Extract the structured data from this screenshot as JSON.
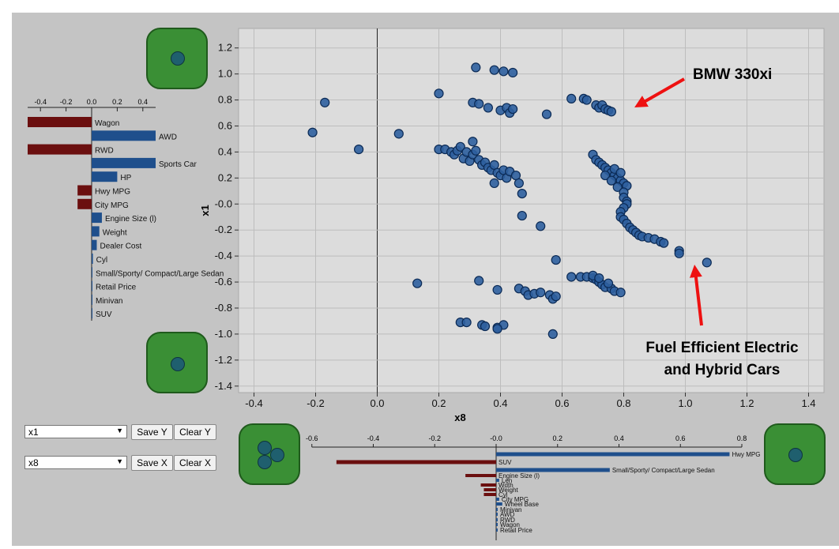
{
  "scatter": {
    "xlabel": "x8",
    "ylabel": "x1",
    "xlim": [
      -0.45,
      1.45
    ],
    "ylim": [
      -1.45,
      1.35
    ],
    "xticks": [
      -0.4,
      -0.2,
      0.0,
      0.2,
      0.4,
      0.6,
      0.8,
      1.0,
      1.2,
      1.4
    ],
    "yticks": [
      1.2,
      1.0,
      0.8,
      0.6,
      0.4,
      0.2,
      0.0,
      -0.2,
      -0.4,
      -0.6,
      -0.8,
      -1.0,
      -1.2,
      -1.4
    ],
    "xtick_labels": [
      "-0.4",
      "-0.2",
      "0.0",
      "0.2",
      "0.4",
      "0.6",
      "0.8",
      "1.0",
      "1.2",
      "1.4"
    ],
    "ytick_labels": [
      "1.2",
      "1.0",
      "0.8",
      "0.6",
      "0.4",
      "0.2",
      "-0.0",
      "-0.2",
      "-0.4",
      "-0.6",
      "-0.8",
      "-1.0",
      "-1.2",
      "-1.4"
    ],
    "point_color": "#2e5f9e",
    "grid": true
  },
  "annotations": {
    "bmw": "BMW 330xi",
    "fuel_line1": "Fuel Efficient Electric",
    "fuel_line2": "and Hybrid Cars",
    "arrow_color": "#ee1111"
  },
  "chart_data": [
    {
      "type": "scatter",
      "points": [
        [
          -0.21,
          0.55
        ],
        [
          -0.17,
          0.78
        ],
        [
          -0.06,
          0.42
        ],
        [
          0.07,
          0.54
        ],
        [
          0.13,
          -0.61
        ],
        [
          0.2,
          0.85
        ],
        [
          0.2,
          0.42
        ],
        [
          0.22,
          0.42
        ],
        [
          0.24,
          0.4
        ],
        [
          0.25,
          0.38
        ],
        [
          0.26,
          0.41
        ],
        [
          0.27,
          0.44
        ],
        [
          0.28,
          0.35
        ],
        [
          0.29,
          0.4
        ],
        [
          0.3,
          0.33
        ],
        [
          0.31,
          0.38
        ],
        [
          0.32,
          0.41
        ],
        [
          0.33,
          0.34
        ],
        [
          0.34,
          0.3
        ],
        [
          0.35,
          0.32
        ],
        [
          0.36,
          0.28
        ],
        [
          0.37,
          0.26
        ],
        [
          0.38,
          0.3
        ],
        [
          0.39,
          0.24
        ],
        [
          0.4,
          0.22
        ],
        [
          0.41,
          0.26
        ],
        [
          0.42,
          0.2
        ],
        [
          0.43,
          0.25
        ],
        [
          0.45,
          0.22
        ],
        [
          0.46,
          0.16
        ],
        [
          0.47,
          0.08
        ],
        [
          0.38,
          0.16
        ],
        [
          0.47,
          -0.09
        ],
        [
          0.53,
          -0.17
        ],
        [
          0.31,
          0.48
        ],
        [
          0.31,
          0.78
        ],
        [
          0.33,
          0.77
        ],
        [
          0.36,
          0.74
        ],
        [
          0.4,
          0.72
        ],
        [
          0.42,
          0.74
        ],
        [
          0.43,
          0.7
        ],
        [
          0.44,
          0.73
        ],
        [
          0.55,
          0.69
        ],
        [
          0.32,
          1.05
        ],
        [
          0.38,
          1.03
        ],
        [
          0.41,
          1.02
        ],
        [
          0.44,
          1.01
        ],
        [
          0.63,
          0.81
        ],
        [
          0.67,
          0.81
        ],
        [
          0.68,
          0.8
        ],
        [
          0.71,
          0.76
        ],
        [
          0.72,
          0.74
        ],
        [
          0.73,
          0.76
        ],
        [
          0.74,
          0.73
        ],
        [
          0.75,
          0.72
        ],
        [
          0.76,
          0.71
        ],
        [
          0.7,
          0.38
        ],
        [
          0.71,
          0.34
        ],
        [
          0.72,
          0.32
        ],
        [
          0.73,
          0.3
        ],
        [
          0.74,
          0.28
        ],
        [
          0.75,
          0.26
        ],
        [
          0.76,
          0.24
        ],
        [
          0.77,
          0.22
        ],
        [
          0.78,
          0.2
        ],
        [
          0.79,
          0.18
        ],
        [
          0.8,
          0.16
        ],
        [
          0.81,
          0.14
        ],
        [
          0.77,
          0.27
        ],
        [
          0.79,
          0.24
        ],
        [
          0.74,
          0.22
        ],
        [
          0.76,
          0.18
        ],
        [
          0.78,
          0.13
        ],
        [
          0.8,
          0.09
        ],
        [
          0.8,
          0.05
        ],
        [
          0.81,
          0.02
        ],
        [
          0.81,
          0.0
        ],
        [
          0.8,
          -0.03
        ],
        [
          0.79,
          -0.06
        ],
        [
          0.79,
          -0.1
        ],
        [
          0.8,
          -0.12
        ],
        [
          0.81,
          -0.15
        ],
        [
          0.82,
          -0.18
        ],
        [
          0.83,
          -0.2
        ],
        [
          0.84,
          -0.22
        ],
        [
          0.85,
          -0.24
        ],
        [
          0.86,
          -0.25
        ],
        [
          0.88,
          -0.26
        ],
        [
          0.9,
          -0.27
        ],
        [
          0.92,
          -0.29
        ],
        [
          0.93,
          -0.3
        ],
        [
          0.98,
          -0.36
        ],
        [
          0.98,
          -0.38
        ],
        [
          1.07,
          -0.45
        ],
        [
          0.58,
          -0.43
        ],
        [
          0.33,
          -0.59
        ],
        [
          0.39,
          -0.66
        ],
        [
          0.46,
          -0.65
        ],
        [
          0.48,
          -0.67
        ],
        [
          0.49,
          -0.7
        ],
        [
          0.51,
          -0.69
        ],
        [
          0.53,
          -0.68
        ],
        [
          0.56,
          -0.7
        ],
        [
          0.57,
          -0.73
        ],
        [
          0.58,
          -0.71
        ],
        [
          0.63,
          -0.56
        ],
        [
          0.66,
          -0.56
        ],
        [
          0.68,
          -0.56
        ],
        [
          0.7,
          -0.57
        ],
        [
          0.71,
          -0.58
        ],
        [
          0.72,
          -0.6
        ],
        [
          0.73,
          -0.62
        ],
        [
          0.74,
          -0.64
        ],
        [
          0.76,
          -0.65
        ],
        [
          0.77,
          -0.67
        ],
        [
          0.79,
          -0.68
        ],
        [
          0.7,
          -0.55
        ],
        [
          0.72,
          -0.57
        ],
        [
          0.75,
          -0.61
        ],
        [
          0.27,
          -0.91
        ],
        [
          0.29,
          -0.91
        ],
        [
          0.34,
          -0.93
        ],
        [
          0.35,
          -0.94
        ],
        [
          0.39,
          -0.95
        ],
        [
          0.41,
          -0.93
        ],
        [
          0.39,
          -0.96
        ],
        [
          0.57,
          -1.0
        ]
      ]
    },
    {
      "type": "bar",
      "orientation": "horizontal",
      "axis": "y",
      "categories": [
        "Wagon",
        "AWD",
        "RWD",
        "Sports Car",
        "HP",
        "Hwy MPG",
        "City MPG",
        "Engine Size (l)",
        "Weight",
        "Dealer Cost",
        "Cyl",
        "Small/Sporty/ Compact/Large Sedan",
        "Retail Price",
        "Minivan",
        "SUV"
      ],
      "values": [
        -0.5,
        0.5,
        -0.5,
        0.5,
        0.2,
        -0.11,
        -0.11,
        0.08,
        0.06,
        0.04,
        0.01,
        0.005,
        0.005,
        0.005,
        0.005
      ],
      "xlim": [
        -0.5,
        0.5
      ],
      "ticks": [
        -0.4,
        -0.2,
        0.0,
        0.2,
        0.4
      ],
      "tick_labels": [
        "-0.4",
        "-0.2",
        "0.0",
        "0.2",
        "0.4"
      ]
    },
    {
      "type": "bar",
      "orientation": "horizontal",
      "axis": "x",
      "categories": [
        "Hwy MPG",
        "SUV",
        "Small/Sporty/ Compact/Large Sedan",
        "Engine Size (l)",
        "Len",
        "Wdth",
        "Weight",
        "Cyl",
        "City MPG",
        "Wheel Base",
        "Minivan",
        "AWD",
        "RWD",
        "Wagon",
        "Retail Price"
      ],
      "values": [
        0.76,
        -0.52,
        0.37,
        -0.1,
        0.01,
        -0.05,
        -0.04,
        -0.04,
        0.01,
        0.02,
        0.005,
        0.005,
        0.005,
        0.005,
        0.005
      ],
      "xlim": [
        -0.6,
        0.8
      ],
      "ticks": [
        -0.6,
        -0.4,
        -0.2,
        0.0,
        0.2,
        0.4,
        0.6,
        0.8
      ],
      "tick_labels": [
        "-0.6",
        "-0.4",
        "-0.2",
        "-0.0",
        "0.2",
        "0.4",
        "0.6",
        "0.8"
      ]
    }
  ],
  "controls": {
    "y_select": "x1",
    "x_select": "x8",
    "save_y": "Save Y",
    "clear_y": "Clear Y",
    "save_x": "Save X",
    "clear_x": "Clear X"
  },
  "colors": {
    "panel_bg": "#c4c4c4",
    "plot_bg": "#dcdcdc",
    "positive_bar": "#1f4f8c",
    "negative_bar": "#6b0f0f",
    "pad_green": "#3a8f35"
  }
}
